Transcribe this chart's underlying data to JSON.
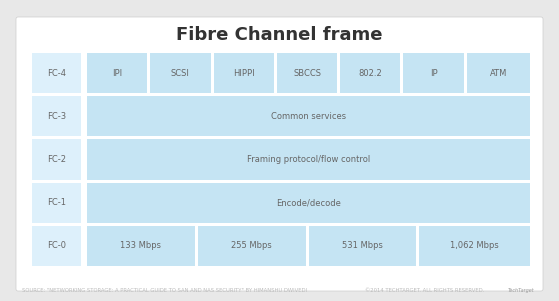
{
  "title": "Fibre Channel frame",
  "title_fontsize": 13,
  "title_fontweight": "bold",
  "title_color": "#333333",
  "bg_color": "#e8e8e8",
  "card_bg": "#ffffff",
  "cell_color": "#c5e4f3",
  "label_color": "#ddf0fb",
  "rows": [
    {
      "label": "FC-4",
      "cells": [
        "IPI",
        "SCSI",
        "HIPPI",
        "SBCCS",
        "802.2",
        "IP",
        "ATM"
      ],
      "span": false
    },
    {
      "label": "FC-3",
      "cells": [
        "Common services"
      ],
      "span": true
    },
    {
      "label": "FC-2",
      "cells": [
        "Framing protocol/flow control"
      ],
      "span": true
    },
    {
      "label": "FC-1",
      "cells": [
        "Encode/decode"
      ],
      "span": true
    },
    {
      "label": "FC-0",
      "cells": [
        "133 Mbps",
        "255 Mbps",
        "531 Mbps",
        "1,062 Mbps"
      ],
      "span": false
    }
  ],
  "text_color": "#666666",
  "cell_fontsize": 6.0,
  "label_fontsize": 6.0,
  "footer_left": "SOURCE: \"NETWORKING STORAGE: A PRACTICAL GUIDE TO SAN AND NAS SECURITY\" BY HIMANSHU DWIVEDI",
  "footer_right": "©2014 TECHTARGET. ALL RIGHTS RESERVED.",
  "footer_color": "#bbbbbb",
  "footer_fontsize": 3.8
}
